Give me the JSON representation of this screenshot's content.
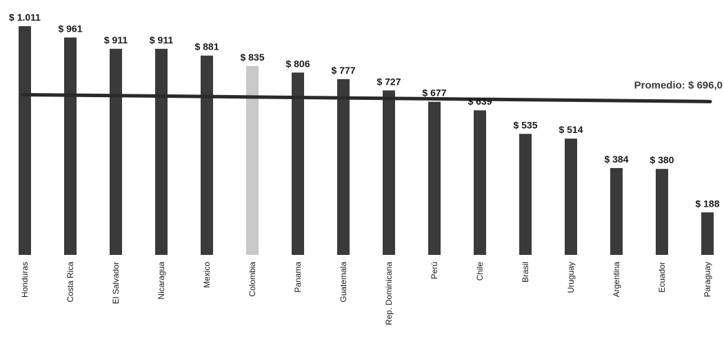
{
  "chart_data": {
    "type": "bar",
    "categories": [
      "Honduras",
      "Costa Rica",
      "El Salvador",
      "Nicaragua",
      "Mexico",
      "Colombia",
      "Panama",
      "Guatemala",
      "Rep. Dominicana",
      "Perú",
      "Chile",
      "Brasil",
      "Uruguay",
      "Argentina",
      "Ecuador",
      "Paraguay"
    ],
    "values": [
      1011,
      961,
      911,
      911,
      881,
      835,
      806,
      777,
      727,
      677,
      639,
      535,
      514,
      384,
      380,
      188
    ],
    "value_labels": [
      "$ 1.011",
      "$ 961",
      "$ 911",
      "$ 911",
      "$ 881",
      "$ 835",
      "$ 806",
      "$ 777",
      "$ 727",
      "$ 677",
      "$ 639",
      "$ 535",
      "$ 514",
      "$ 384",
      "$ 380",
      "$ 188"
    ],
    "highlighted_category": "Colombia",
    "average": {
      "value": 696.0,
      "label": "Promedio: $ 696,0"
    },
    "ylim": [
      0,
      1011
    ],
    "grid": false,
    "colors": {
      "bar": "#3a3a3a",
      "highlight": "#c8c8c8",
      "average_line": "#2a2a2a"
    }
  }
}
